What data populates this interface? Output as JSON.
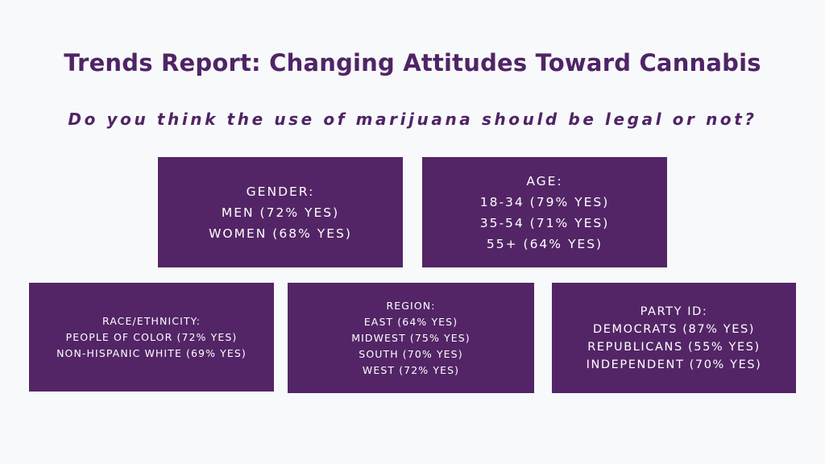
{
  "title": "Trends Report: Changing Attitudes Toward Cannabis",
  "subtitle": "Do you think the use of marijuana should be legal or not?",
  "colors": {
    "background": "#f8f9fa",
    "accent": "#532566",
    "title_text": "#4f2466",
    "box_text": "#ffffff"
  },
  "boxes": {
    "gender": {
      "heading": "GENDER:",
      "lines": [
        "MEN (72% YES)",
        "WOMEN (68% YES)"
      ]
    },
    "age": {
      "heading": "AGE:",
      "lines": [
        "18-34 (79% YES)",
        "35-54 (71% YES)",
        "55+ (64% YES)"
      ]
    },
    "race": {
      "heading": "RACE/ETHNICITY:",
      "lines": [
        "PEOPLE OF COLOR (72% YES)",
        "NON-HISPANIC WHITE (69% YES)"
      ]
    },
    "region": {
      "heading": "REGION:",
      "lines": [
        "EAST (64% YES)",
        "MIDWEST (75% YES)",
        "SOUTH (70% YES)",
        "WEST (72% YES)"
      ]
    },
    "party": {
      "heading": "PARTY ID:",
      "lines": [
        "DEMOCRATS (87% YES)",
        "REPUBLICANS (55% YES)",
        "INDEPENDENT (70% YES)"
      ]
    }
  }
}
